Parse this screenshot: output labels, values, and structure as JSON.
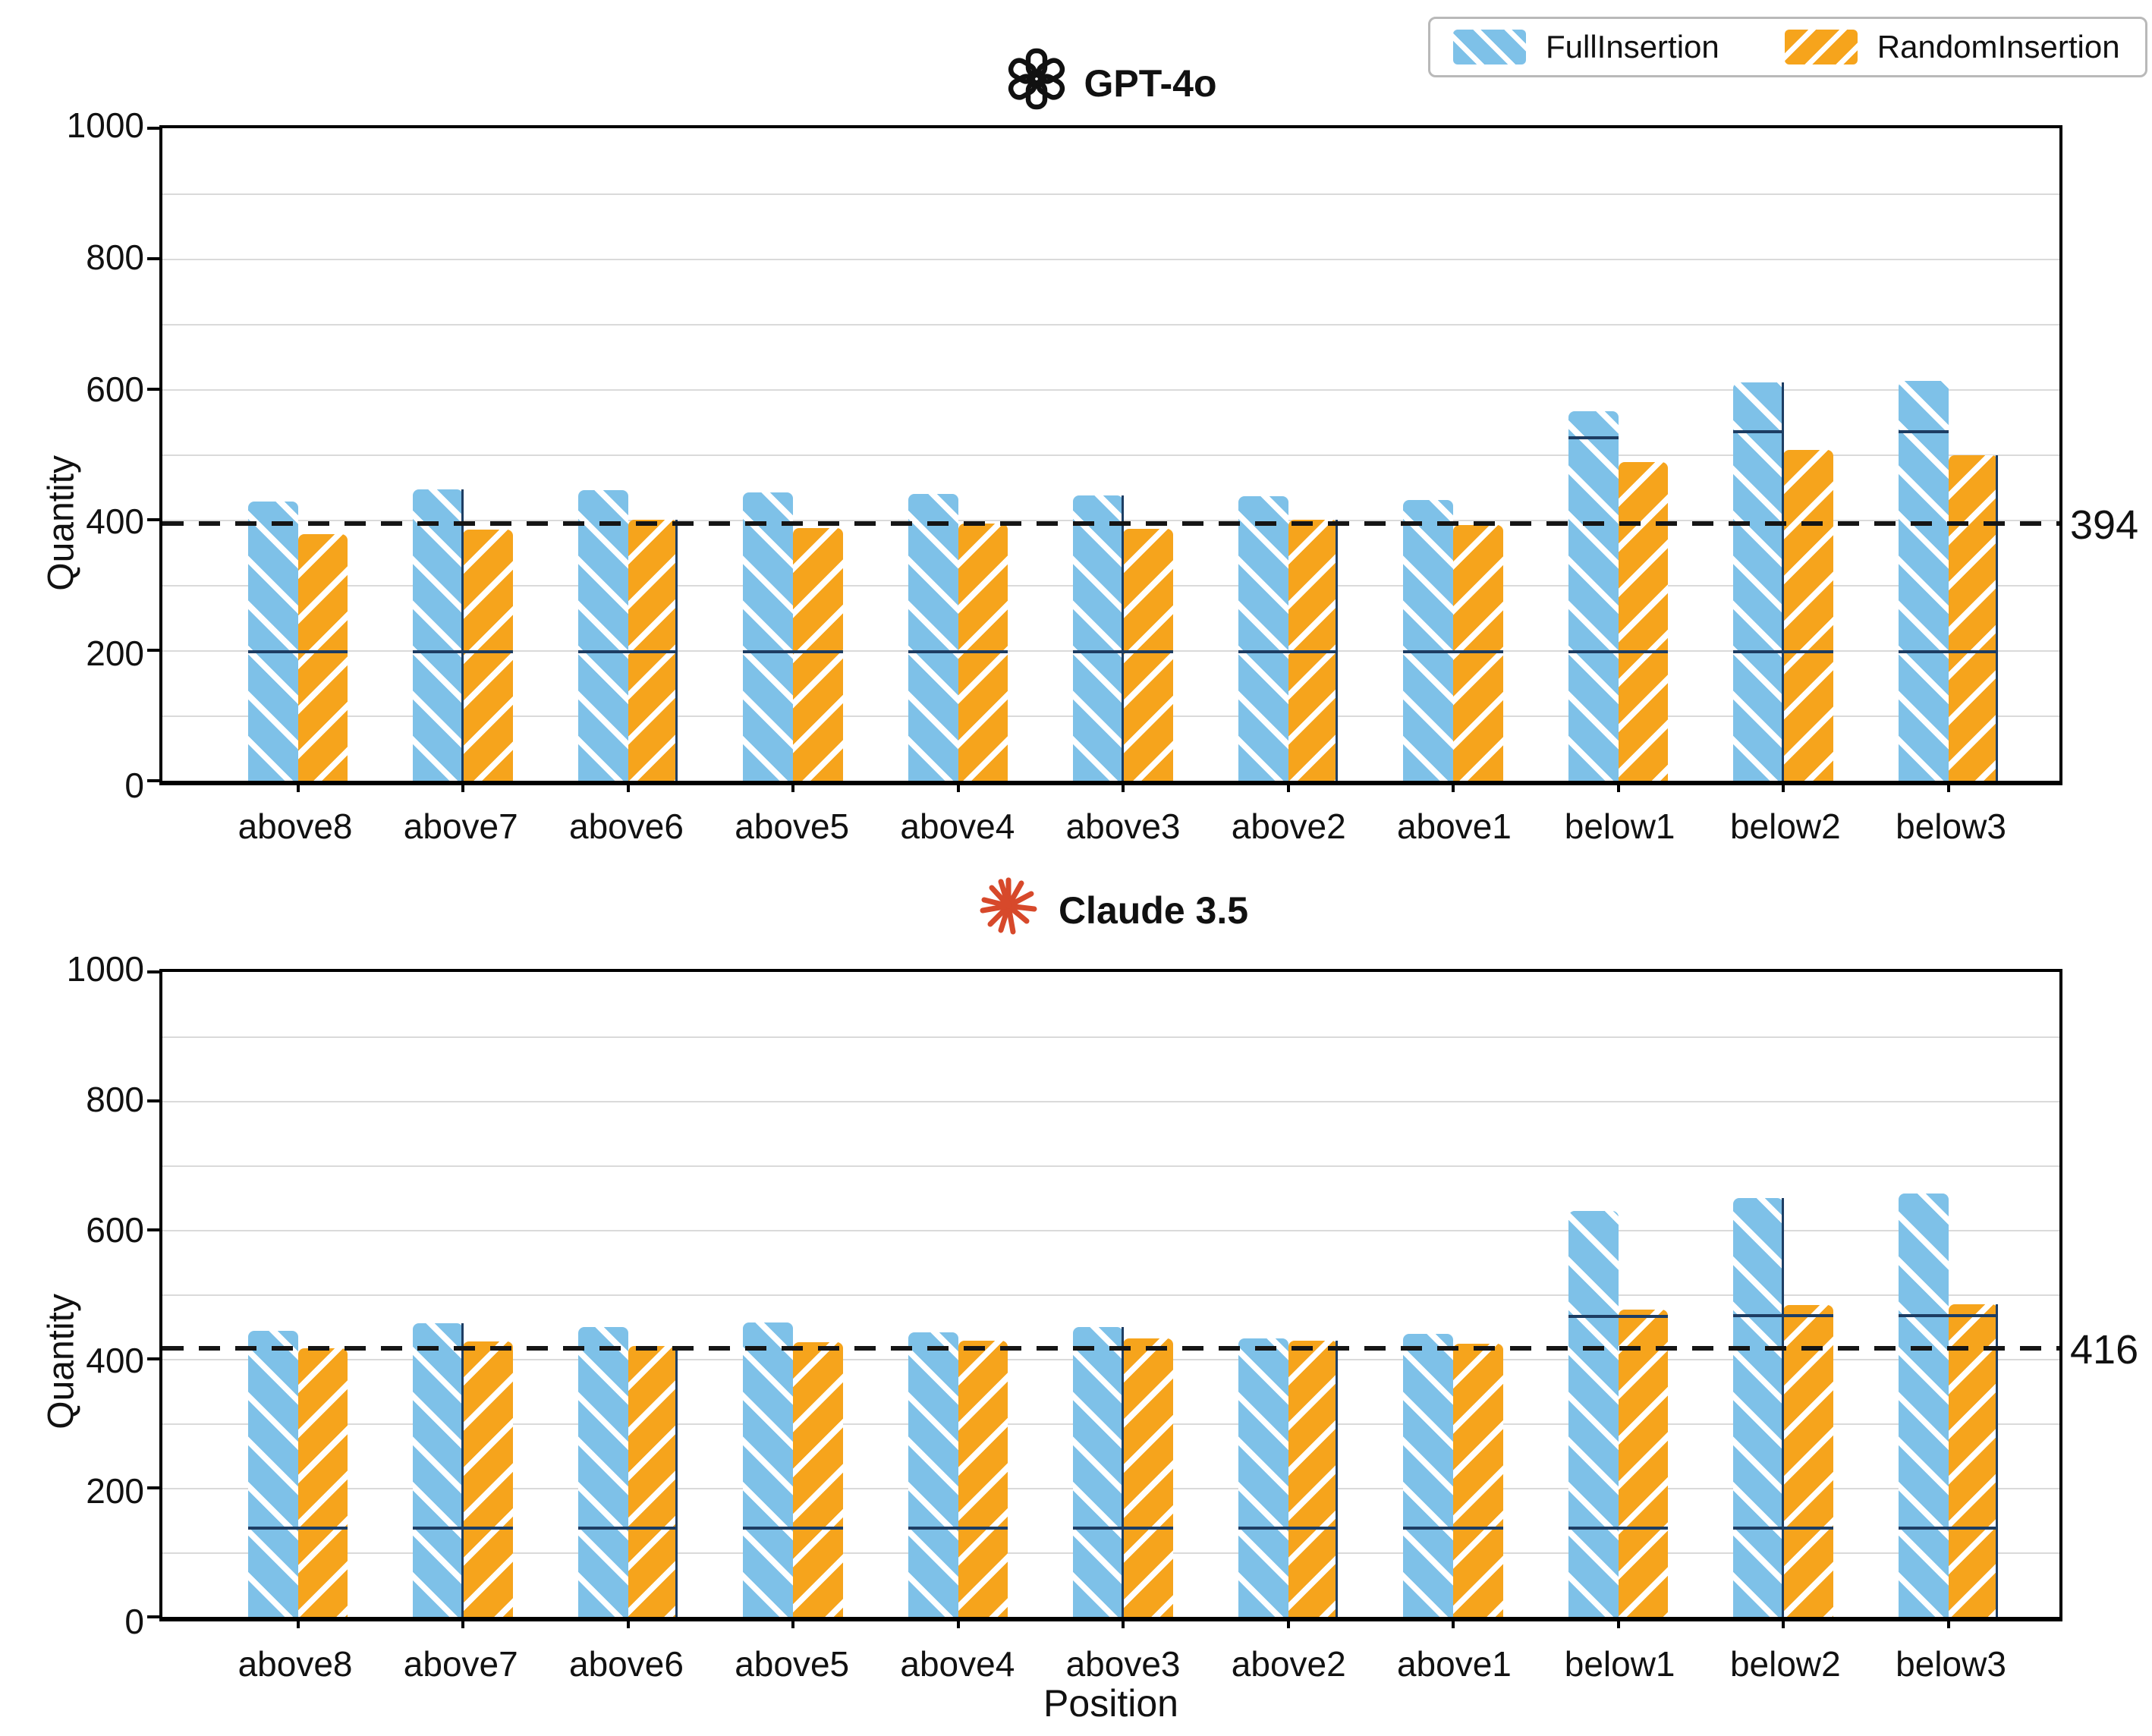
{
  "page": {
    "background": "#ffffff"
  },
  "colors": {
    "full_insertion": "#7EC1E8",
    "random_insertion": "#F6A41C",
    "artifact_navy": "#1d3d63",
    "gridline": "#dadada",
    "reference_dash": "#151515",
    "claude_logo": "#D7492B",
    "openai_logo": "#111111"
  },
  "legend": {
    "items": [
      {
        "label": "FullInsertion",
        "color": "#7EC1E8",
        "hatch": "backslash"
      },
      {
        "label": "RandomInsertion",
        "color": "#F6A41C",
        "hatch": "slash"
      }
    ]
  },
  "chart_data": [
    {
      "type": "bar",
      "title": "GPT-4o",
      "logo": "openai-logo",
      "ylabel": "Quantity",
      "xlabel": "",
      "ylim": [
        0,
        1000
      ],
      "yticks": [
        0,
        200,
        400,
        600,
        800,
        1000
      ],
      "grid": "horizontal every 100",
      "legend_position": "figure top-right",
      "categories": [
        "above8",
        "above7",
        "above6",
        "above5",
        "above4",
        "above3",
        "above2",
        "above1",
        "below1",
        "below2",
        "below3"
      ],
      "series": [
        {
          "name": "FullInsertion",
          "color": "#7EC1E8",
          "hatch": "\\",
          "values": [
            428,
            447,
            445,
            442,
            440,
            437,
            436,
            430,
            566,
            610,
            613
          ]
        },
        {
          "name": "RandomInsertion",
          "color": "#F6A41C",
          "hatch": "/",
          "values": [
            378,
            385,
            400,
            387,
            394,
            386,
            400,
            392,
            488,
            507,
            499
          ]
        }
      ],
      "reference_line": {
        "value": 394,
        "label": "394",
        "style": "dashed"
      },
      "artifacts": {
        "pair_mark_value": 200,
        "extra_marks": [
          null,
          null,
          null,
          null,
          null,
          null,
          null,
          null,
          528,
          537,
          537
        ],
        "extra_mark_span": "blue",
        "vlines": [
          "none",
          "mid",
          "right",
          "none",
          "none",
          "mid",
          "right",
          "none",
          "none",
          "mid",
          "right"
        ]
      }
    },
    {
      "type": "bar",
      "title": "Claude 3.5",
      "logo": "claude-logo",
      "ylabel": "Quantity",
      "xlabel": "Position",
      "ylim": [
        0,
        1000
      ],
      "yticks": [
        0,
        200,
        400,
        600,
        800,
        1000
      ],
      "grid": "horizontal every 100",
      "legend_position": "figure top-right",
      "categories": [
        "above8",
        "above7",
        "above6",
        "above5",
        "above4",
        "above3",
        "above2",
        "above1",
        "below1",
        "below2",
        "below3"
      ],
      "series": [
        {
          "name": "FullInsertion",
          "color": "#7EC1E8",
          "hatch": "\\",
          "values": [
            444,
            455,
            450,
            456,
            441,
            450,
            432,
            439,
            630,
            649,
            656
          ]
        },
        {
          "name": "RandomInsertion",
          "color": "#F6A41C",
          "hatch": "/",
          "values": [
            416,
            427,
            420,
            426,
            428,
            432,
            428,
            424,
            477,
            483,
            485
          ]
        }
      ],
      "reference_line": {
        "value": 416,
        "label": "416",
        "style": "dashed"
      },
      "artifacts": {
        "pair_mark_value": 140,
        "extra_marks": [
          null,
          null,
          null,
          null,
          null,
          null,
          null,
          null,
          468,
          470,
          470
        ],
        "extra_mark_span": "pair",
        "vlines": [
          "none",
          "mid",
          "right",
          "none",
          "none",
          "mid",
          "right",
          "none",
          "none",
          "mid",
          "right"
        ]
      }
    }
  ]
}
